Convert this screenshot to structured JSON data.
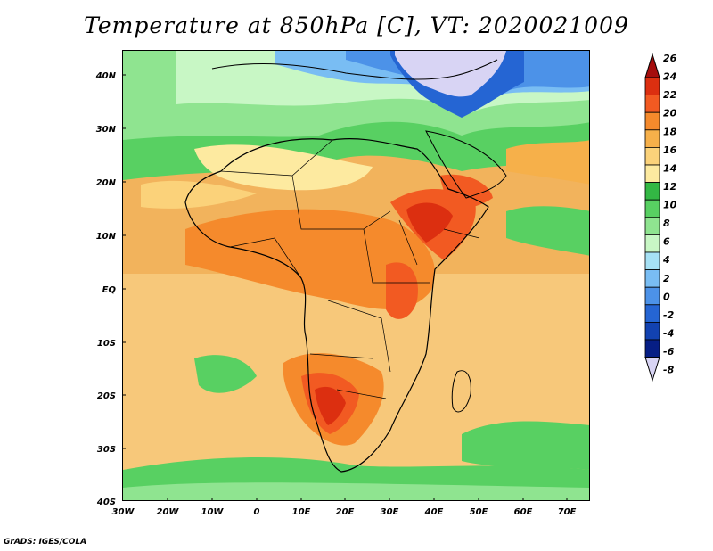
{
  "title": "Temperature at 850hPa [C], VT: 2020021009",
  "footer": "GrADS: IGES/COLA",
  "map": {
    "lat_labels": [
      "40N",
      "30N",
      "20N",
      "10N",
      "EQ",
      "10S",
      "20S",
      "30S",
      "40S"
    ],
    "lon_labels": [
      "30W",
      "20W",
      "10W",
      "0",
      "10E",
      "20E",
      "30E",
      "40E",
      "50E",
      "60E",
      "70E"
    ]
  },
  "colorbar": {
    "levels": [
      "26",
      "24",
      "22",
      "20",
      "18",
      "16",
      "14",
      "12",
      "10",
      "8",
      "6",
      "4",
      "2",
      "0",
      "-2",
      "-4",
      "-6",
      "-8"
    ],
    "colors": [
      "#a50d0d",
      "#dc2f10",
      "#f25a22",
      "#f58a2c",
      "#f6b04a",
      "#fbd27a",
      "#fdeaa0",
      "#33b844",
      "#58d062",
      "#8fe490",
      "#c8f7c5",
      "#a6e1f5",
      "#79bdf3",
      "#4c92e8",
      "#2565d3",
      "#1242b1",
      "#061e85",
      "#d8d4f4"
    ]
  }
}
